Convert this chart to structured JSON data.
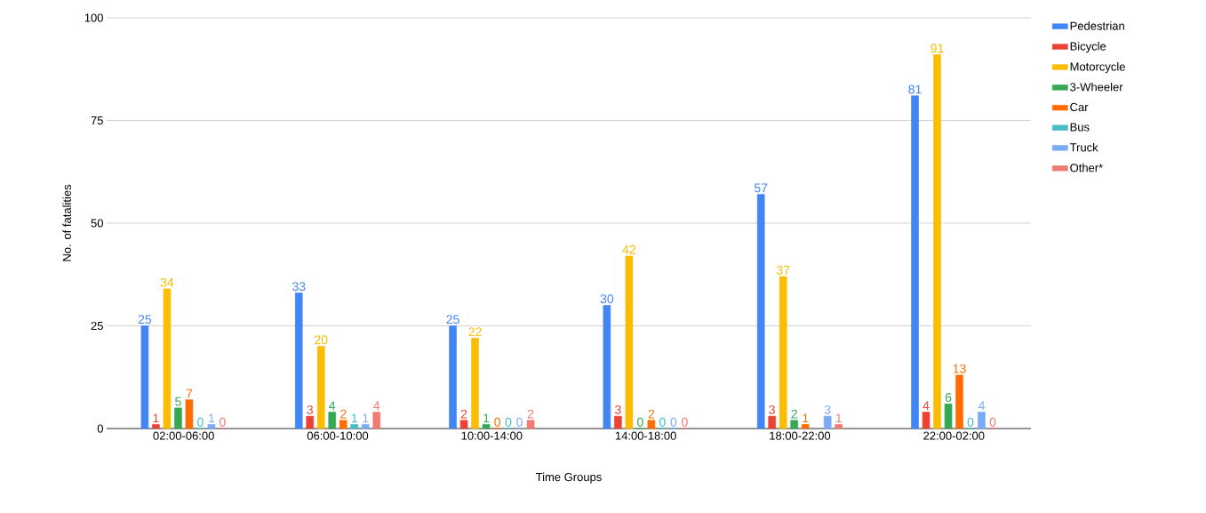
{
  "chart_data": {
    "type": "bar",
    "xlabel": "Time Groups",
    "ylabel": "No. of fatalities",
    "categories": [
      "02:00-06:00",
      "06:00-10:00",
      "10:00-14:00",
      "14:00-18:00",
      "18:00-22:00",
      "22:00-02:00"
    ],
    "series": [
      {
        "name": "Pedestrian",
        "color": "#4285f4",
        "values": [
          25,
          33,
          25,
          30,
          57,
          81
        ]
      },
      {
        "name": "Bicycle",
        "color": "#ea4335",
        "values": [
          1,
          3,
          2,
          3,
          3,
          4
        ]
      },
      {
        "name": "Motorcycle",
        "color": "#fbbc04",
        "values": [
          34,
          20,
          22,
          42,
          37,
          91
        ]
      },
      {
        "name": "3-Wheeler",
        "color": "#34a853",
        "values": [
          5,
          4,
          1,
          0,
          2,
          6
        ]
      },
      {
        "name": "Car",
        "color": "#ff6d01",
        "values": [
          7,
          2,
          0,
          2,
          1,
          13
        ]
      },
      {
        "name": "Bus",
        "color": "#46bdc6",
        "values": [
          0,
          1,
          0,
          0,
          null,
          0
        ]
      },
      {
        "name": "Truck",
        "color": "#7baaf7",
        "values": [
          1,
          1,
          0,
          0,
          3,
          4
        ]
      },
      {
        "name": "Other*",
        "color": "#f07b72",
        "values": [
          0,
          4,
          2,
          0,
          1,
          0
        ]
      }
    ],
    "ylim": [
      0,
      100
    ],
    "yticks": [
      0,
      25,
      50,
      75,
      100
    ],
    "grid": "y",
    "legend": "right",
    "data_labels": true
  }
}
